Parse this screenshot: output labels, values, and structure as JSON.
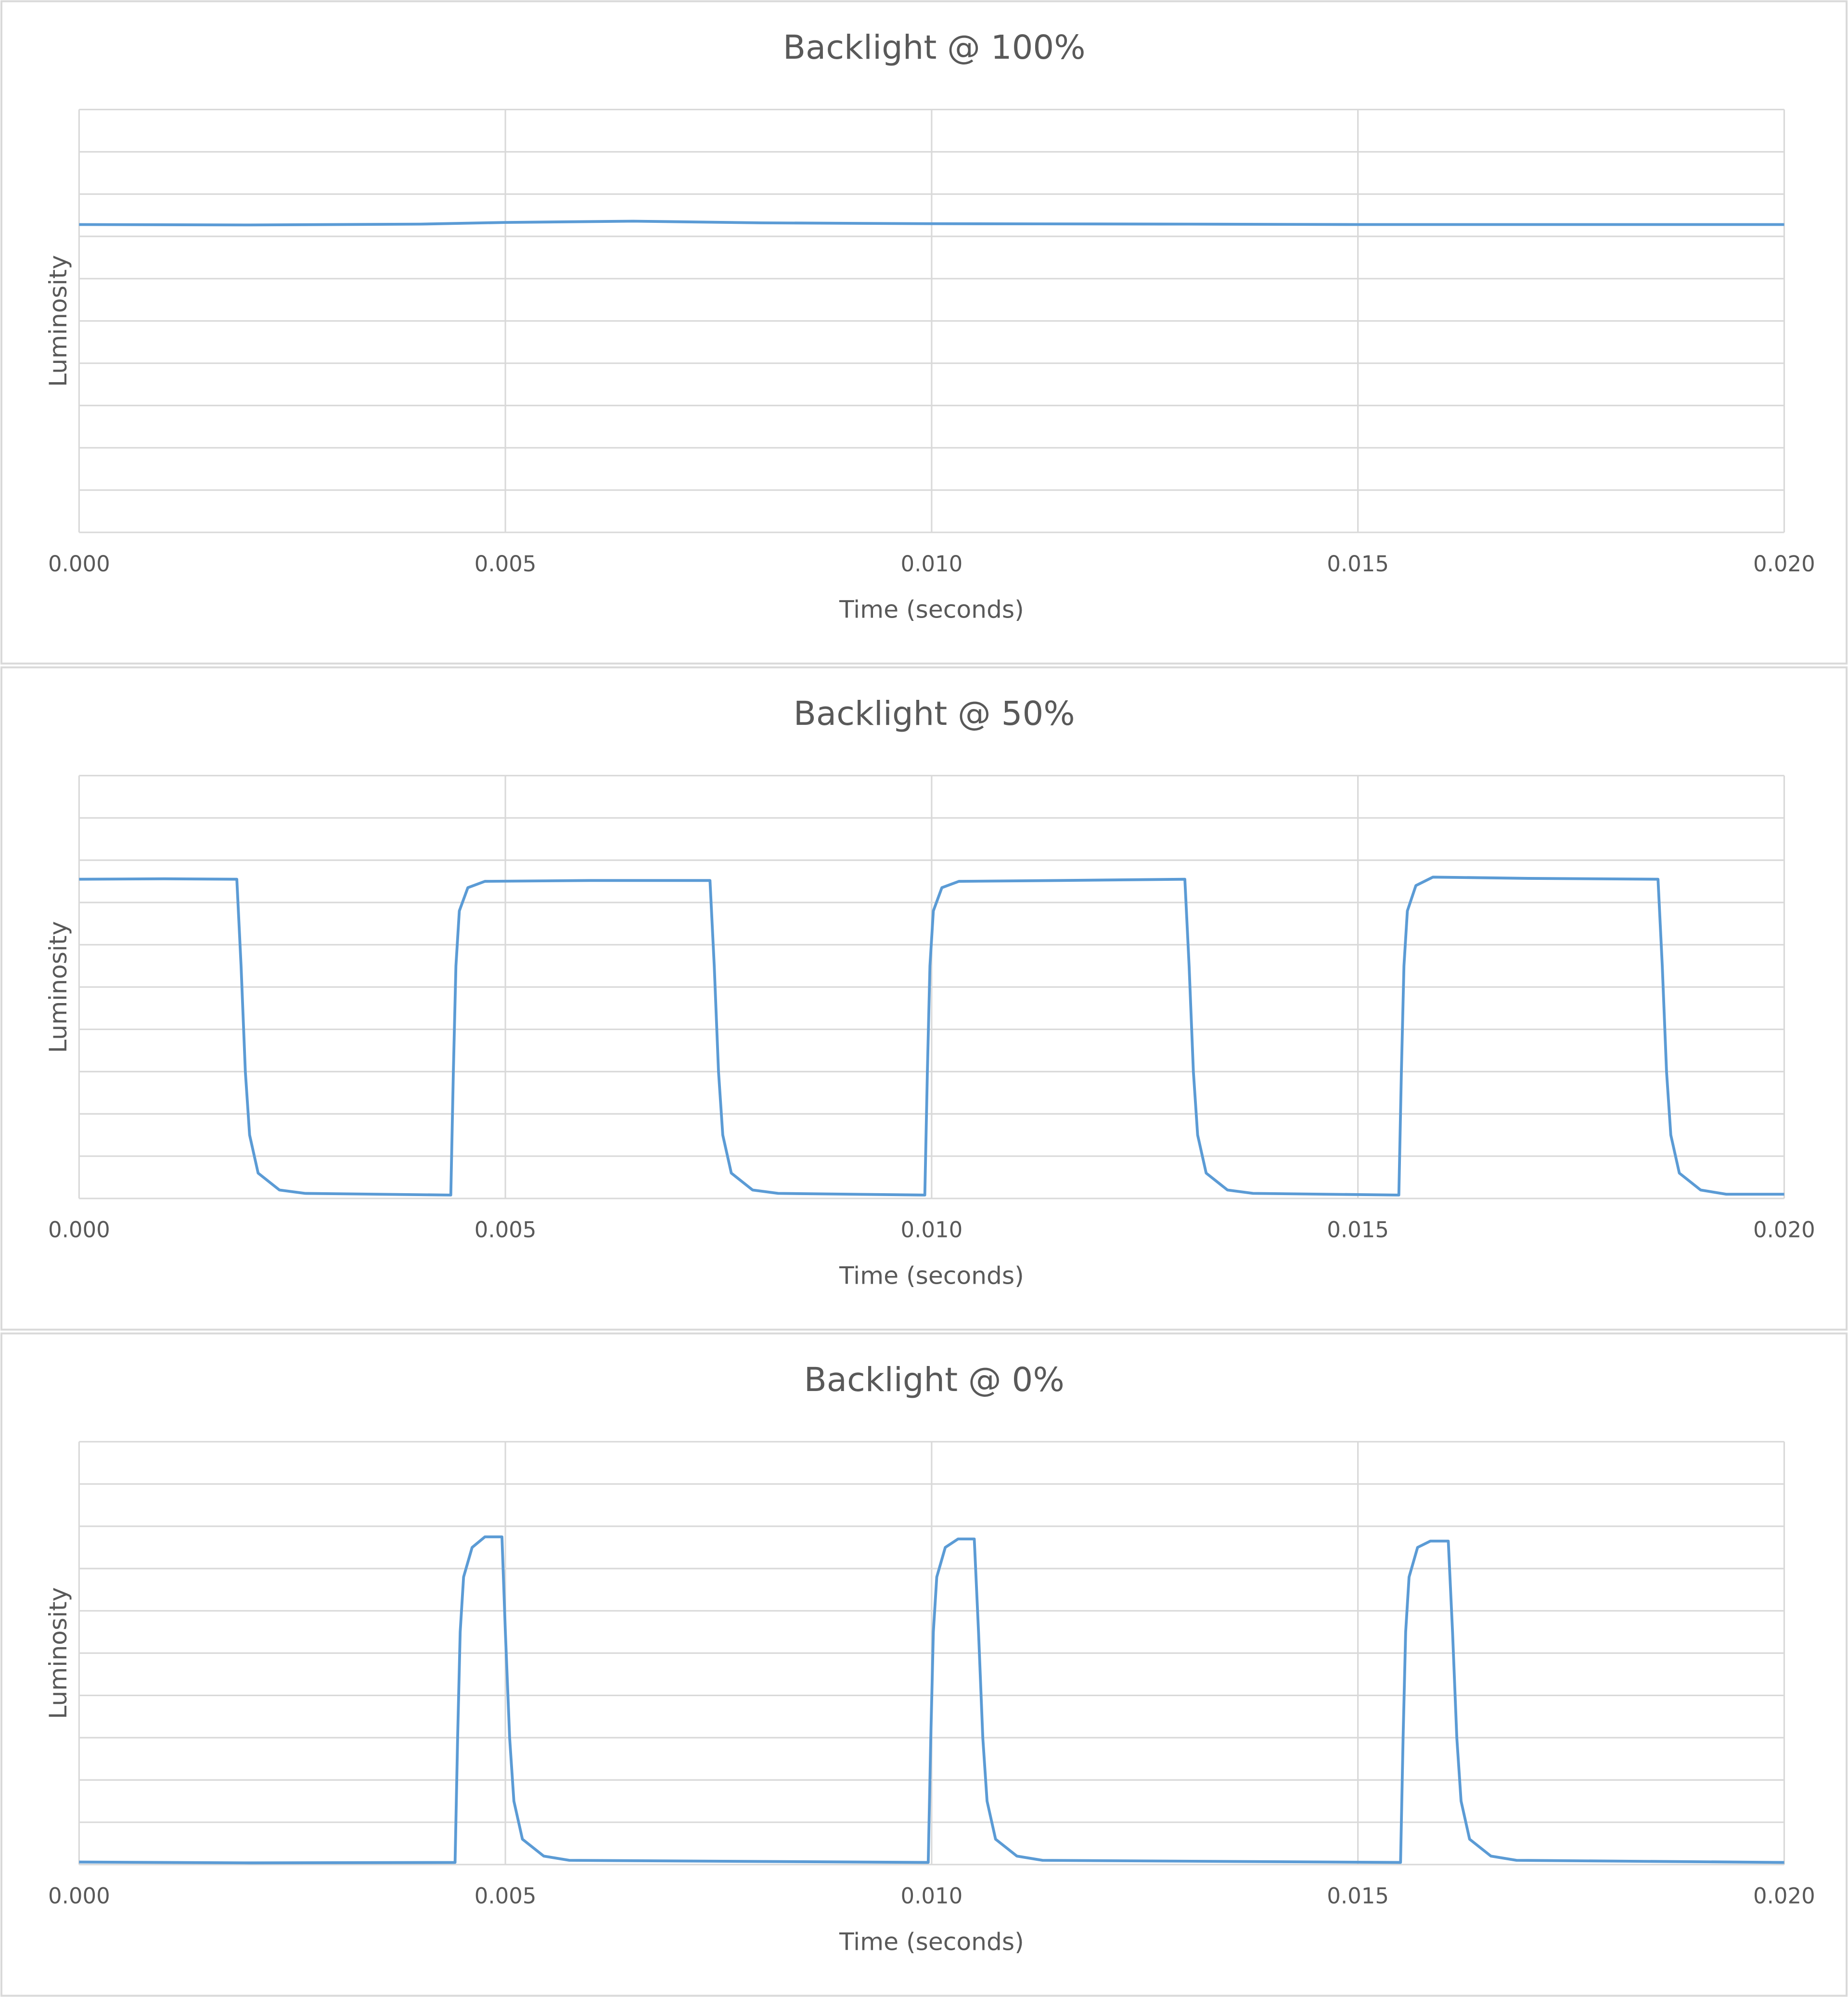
{
  "chart_data": [
    {
      "type": "line",
      "title": "Backlight @ 100%",
      "xlabel": "Time (seconds)",
      "ylabel": "Luminosity",
      "color": "#5b9bd5",
      "x": [
        0,
        0.002,
        0.004,
        0.005,
        0.0065,
        0.008,
        0.01,
        0.013,
        0.015,
        0.02
      ],
      "values": [
        7.28,
        7.27,
        7.29,
        7.33,
        7.36,
        7.32,
        7.3,
        7.29,
        7.28,
        7.28
      ],
      "xlim": [
        0,
        0.02
      ],
      "xticks": [
        {
          "value": 0,
          "label": "0.000"
        },
        0.005,
        {
          "value": 0.01,
          "label": "0.010"
        },
        0.015,
        {
          "value": 0.02,
          "label": "0.020"
        }
      ],
      "ylim": [
        0,
        10
      ],
      "yticks": [
        0,
        1,
        2,
        3,
        4,
        5,
        6,
        7,
        8,
        9,
        10
      ],
      "ytick_labels": false,
      "grid": true
    },
    {
      "type": "line",
      "title": "Backlight @ 50%",
      "xlabel": "Time (seconds)",
      "ylabel": "Luminosity",
      "color": "#5b9bd5",
      "x": [
        0,
        0.001,
        0.00185,
        0.0019,
        0.00195,
        0.002,
        0.0021,
        0.00235,
        0.00265,
        0.00436,
        0.00439,
        0.00442,
        0.00446,
        0.00456,
        0.00476,
        0.006,
        0.0074,
        0.00745,
        0.0075,
        0.00755,
        0.00765,
        0.0079,
        0.0082,
        0.00992,
        0.00995,
        0.00998,
        0.01002,
        0.01012,
        0.01032,
        0.0115,
        0.01297,
        0.01302,
        0.01307,
        0.01312,
        0.01322,
        0.01347,
        0.01377,
        0.01548,
        0.01551,
        0.01554,
        0.01558,
        0.01568,
        0.01588,
        0.017,
        0.01852,
        0.01857,
        0.01862,
        0.01867,
        0.01877,
        0.01902,
        0.01932,
        0.02
      ],
      "values": [
        7.55,
        7.56,
        7.55,
        5.5,
        3,
        1.5,
        0.6,
        0.2,
        0.12,
        0.08,
        3,
        5.5,
        6.8,
        7.35,
        7.5,
        7.52,
        7.52,
        5.5,
        3,
        1.5,
        0.6,
        0.2,
        0.12,
        0.08,
        3,
        5.5,
        6.8,
        7.35,
        7.5,
        7.52,
        7.55,
        5.5,
        3,
        1.5,
        0.6,
        0.2,
        0.12,
        0.08,
        3,
        5.5,
        6.8,
        7.4,
        7.6,
        7.57,
        7.55,
        5.5,
        3,
        1.5,
        0.6,
        0.2,
        0.1,
        0.1
      ],
      "xlim": [
        0,
        0.02
      ],
      "xticks": [
        {
          "value": 0,
          "label": "0.000"
        },
        0.005,
        {
          "value": 0.01,
          "label": "0.010"
        },
        0.015,
        {
          "value": 0.02,
          "label": "0.020"
        }
      ],
      "ylim": [
        0,
        10
      ],
      "yticks": [
        0,
        1,
        2,
        3,
        4,
        5,
        6,
        7,
        8,
        9,
        10
      ],
      "ytick_labels": false,
      "grid": true
    },
    {
      "type": "line",
      "title": "Backlight @ 0%",
      "xlabel": "Time (seconds)",
      "ylabel": "Luminosity",
      "color": "#5b9bd5",
      "x": [
        0,
        0.002,
        0.00441,
        0.00444,
        0.00447,
        0.00451,
        0.00461,
        0.00476,
        0.00496,
        0.005,
        0.00505,
        0.0051,
        0.0052,
        0.00545,
        0.00575,
        0.00996,
        0.00999,
        0.01002,
        0.01006,
        0.01016,
        0.01031,
        0.0105,
        0.01055,
        0.0106,
        0.01065,
        0.01075,
        0.011,
        0.0113,
        0.0155,
        0.01553,
        0.01556,
        0.0156,
        0.0157,
        0.01585,
        0.01606,
        0.01611,
        0.01616,
        0.01621,
        0.01631,
        0.01656,
        0.01686,
        0.02
      ],
      "values": [
        0.06,
        0.04,
        0.05,
        3,
        5.5,
        6.8,
        7.5,
        7.75,
        7.75,
        5.5,
        3,
        1.5,
        0.6,
        0.2,
        0.1,
        0.05,
        3,
        5.5,
        6.8,
        7.5,
        7.7,
        7.7,
        5.5,
        3,
        1.5,
        0.6,
        0.2,
        0.1,
        0.05,
        3,
        5.5,
        6.8,
        7.5,
        7.65,
        7.65,
        5.5,
        3,
        1.5,
        0.6,
        0.2,
        0.1,
        0.05
      ],
      "xlim": [
        0,
        0.02
      ],
      "xticks": [
        {
          "value": 0,
          "label": "0.000"
        },
        0.005,
        {
          "value": 0.01,
          "label": "0.010"
        },
        0.015,
        {
          "value": 0.02,
          "label": "0.020"
        }
      ],
      "ylim": [
        0,
        10
      ],
      "yticks": [
        0,
        1,
        2,
        3,
        4,
        5,
        6,
        7,
        8,
        9,
        10
      ],
      "ytick_labels": false,
      "grid": true
    }
  ]
}
